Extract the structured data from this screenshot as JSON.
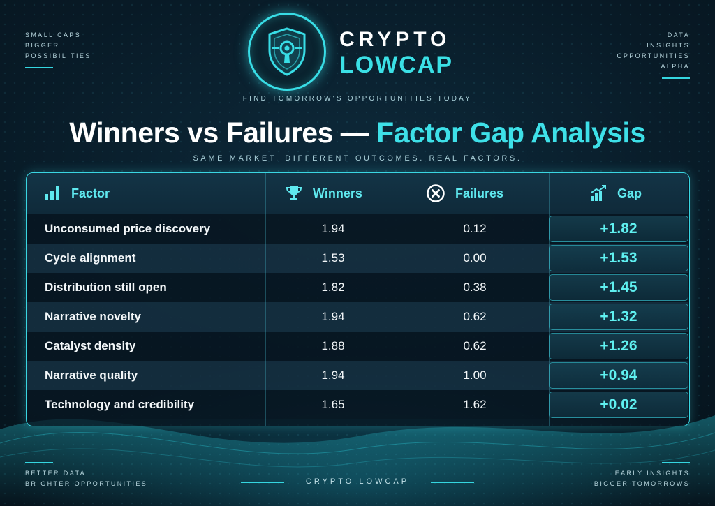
{
  "branding": {
    "name_line1": "CRYPTO",
    "name_line2": "LOWCAP",
    "tagline": "FIND TOMORROW'S OPPORTUNITIES TODAY",
    "accent_color": "#3be0e6"
  },
  "corners": {
    "top_left": [
      "SMALL CAPS",
      "BIGGER",
      "POSSIBILITIES"
    ],
    "top_right": [
      "DATA",
      "INSIGHTS",
      "OPPORTUNITIES",
      "ALPHA"
    ],
    "bottom_left": [
      "BETTER DATA",
      "BRIGHTER OPPORTUNITIES"
    ],
    "bottom_right": [
      "EARLY INSIGHTS",
      "BIGGER TOMORROWS"
    ]
  },
  "title": {
    "part1": "Winners vs Failures —",
    "part2": "Factor Gap Analysis"
  },
  "subtitle": "SAME MARKET. DIFFERENT OUTCOMES. REAL FACTORS.",
  "table": {
    "headers": {
      "factor": "Factor",
      "winners": "Winners",
      "failures": "Failures",
      "gap": "Gap"
    },
    "header_icons": {
      "factor": "bar-chart-icon",
      "winners": "trophy-icon",
      "failures": "x-circle-icon",
      "gap": "growth-chart-icon"
    },
    "rows": [
      {
        "factor": "Unconsumed price discovery",
        "winners": "1.94",
        "failures": "0.12",
        "gap": "+1.82"
      },
      {
        "factor": "Cycle alignment",
        "winners": "1.53",
        "failures": "0.00",
        "gap": "+1.53"
      },
      {
        "factor": "Distribution still open",
        "winners": "1.82",
        "failures": "0.38",
        "gap": "+1.45"
      },
      {
        "factor": "Narrative novelty",
        "winners": "1.94",
        "failures": "0.62",
        "gap": "+1.32"
      },
      {
        "factor": "Catalyst density",
        "winners": "1.88",
        "failures": "0.62",
        "gap": "+1.26"
      },
      {
        "factor": "Narrative quality",
        "winners": "1.94",
        "failures": "1.00",
        "gap": "+0.94"
      },
      {
        "factor": "Technology and credibility",
        "winners": "1.65",
        "failures": "1.62",
        "gap": "+0.02"
      }
    ]
  },
  "footer": {
    "center": "CRYPTO LOWCAP"
  }
}
